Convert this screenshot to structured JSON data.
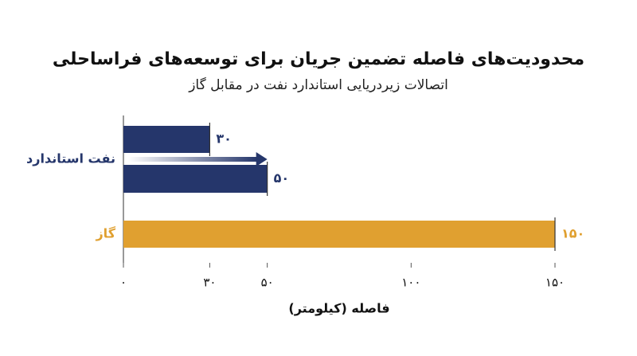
{
  "chart_data": {
    "type": "bar",
    "title": "محدودیت‌های فاصله تضمین جریان برای توسعه‌های فراساحلی",
    "subtitle": "اتصالات زیردریایی استاندارد نفت در مقابل گاز",
    "x_label": "فاصله (کیلومتر)",
    "groups": [
      {
        "label": "نفت استاندارد",
        "color": "#25366b",
        "values": [
          30,
          50
        ],
        "value_labels": [
          "۳۰",
          "۵۰"
        ]
      },
      {
        "label": "گاز",
        "color": "#e0a030",
        "values": [
          150
        ],
        "value_labels": [
          "۱۵۰"
        ]
      }
    ],
    "xlim": [
      0,
      150
    ],
    "xticks": [
      {
        "value": 0,
        "label": "۰"
      },
      {
        "value": 30,
        "label": "۳۰"
      },
      {
        "value": 50,
        "label": "۵۰"
      },
      {
        "value": 100,
        "label": "۱۰۰"
      },
      {
        "value": 150,
        "label": "۱۵۰"
      }
    ]
  }
}
